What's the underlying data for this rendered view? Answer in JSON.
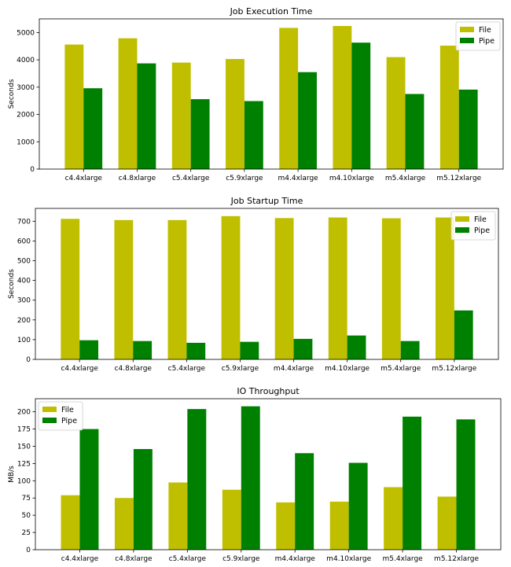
{
  "colors": {
    "file": "#bfbf00",
    "pipe": "#008000"
  },
  "chart_data": [
    {
      "type": "bar",
      "title": "Job Execution Time",
      "xlabel": "",
      "ylabel": "Seconds",
      "ylim": [
        0,
        5500
      ],
      "yticks": [
        0,
        1000,
        2000,
        3000,
        4000,
        5000
      ],
      "legend": "top-right",
      "categories": [
        "c4.4xlarge",
        "c4.8xlarge",
        "c5.4xlarge",
        "c5.9xlarge",
        "m4.4xlarge",
        "m4.10xlarge",
        "m5.4xlarge",
        "m5.12xlarge"
      ],
      "series": [
        {
          "name": "File",
          "values": [
            4560,
            4790,
            3900,
            4030,
            5170,
            5240,
            4100,
            4520
          ]
        },
        {
          "name": "Pipe",
          "values": [
            2960,
            3870,
            2560,
            2490,
            3550,
            4630,
            2750,
            2910
          ]
        }
      ]
    },
    {
      "type": "bar",
      "title": "Job Startup Time",
      "xlabel": "",
      "ylabel": "Seconds",
      "ylim": [
        0,
        765
      ],
      "yticks": [
        0,
        100,
        200,
        300,
        400,
        500,
        600,
        700
      ],
      "legend": "top-right",
      "categories": [
        "c4.4xlarge",
        "c4.8xlarge",
        "c5.4xlarge",
        "c5.9xlarge",
        "m4.4xlarge",
        "m4.10xlarge",
        "m5.4xlarge",
        "m5.12xlarge"
      ],
      "series": [
        {
          "name": "File",
          "values": [
            712,
            706,
            706,
            726,
            716,
            719,
            715,
            719
          ]
        },
        {
          "name": "Pipe",
          "values": [
            97,
            93,
            84,
            89,
            104,
            121,
            93,
            248
          ]
        }
      ]
    },
    {
      "type": "bar",
      "title": "IO Throughput",
      "xlabel": "",
      "ylabel": "MB/s",
      "ylim": [
        0,
        219
      ],
      "yticks": [
        0,
        25,
        50,
        75,
        100,
        125,
        150,
        175,
        200
      ],
      "legend": "top-left",
      "categories": [
        "c4.4xlarge",
        "c4.8xlarge",
        "c5.4xlarge",
        "c5.9xlarge",
        "m4.4xlarge",
        "m4.10xlarge",
        "m5.4xlarge",
        "m5.12xlarge"
      ],
      "series": [
        {
          "name": "File",
          "values": [
            79,
            75,
            97.5,
            87,
            68.6,
            69.7,
            90.7,
            77
          ]
        },
        {
          "name": "Pipe",
          "values": [
            175,
            146,
            204,
            208,
            140,
            126,
            193,
            189
          ]
        }
      ]
    }
  ]
}
